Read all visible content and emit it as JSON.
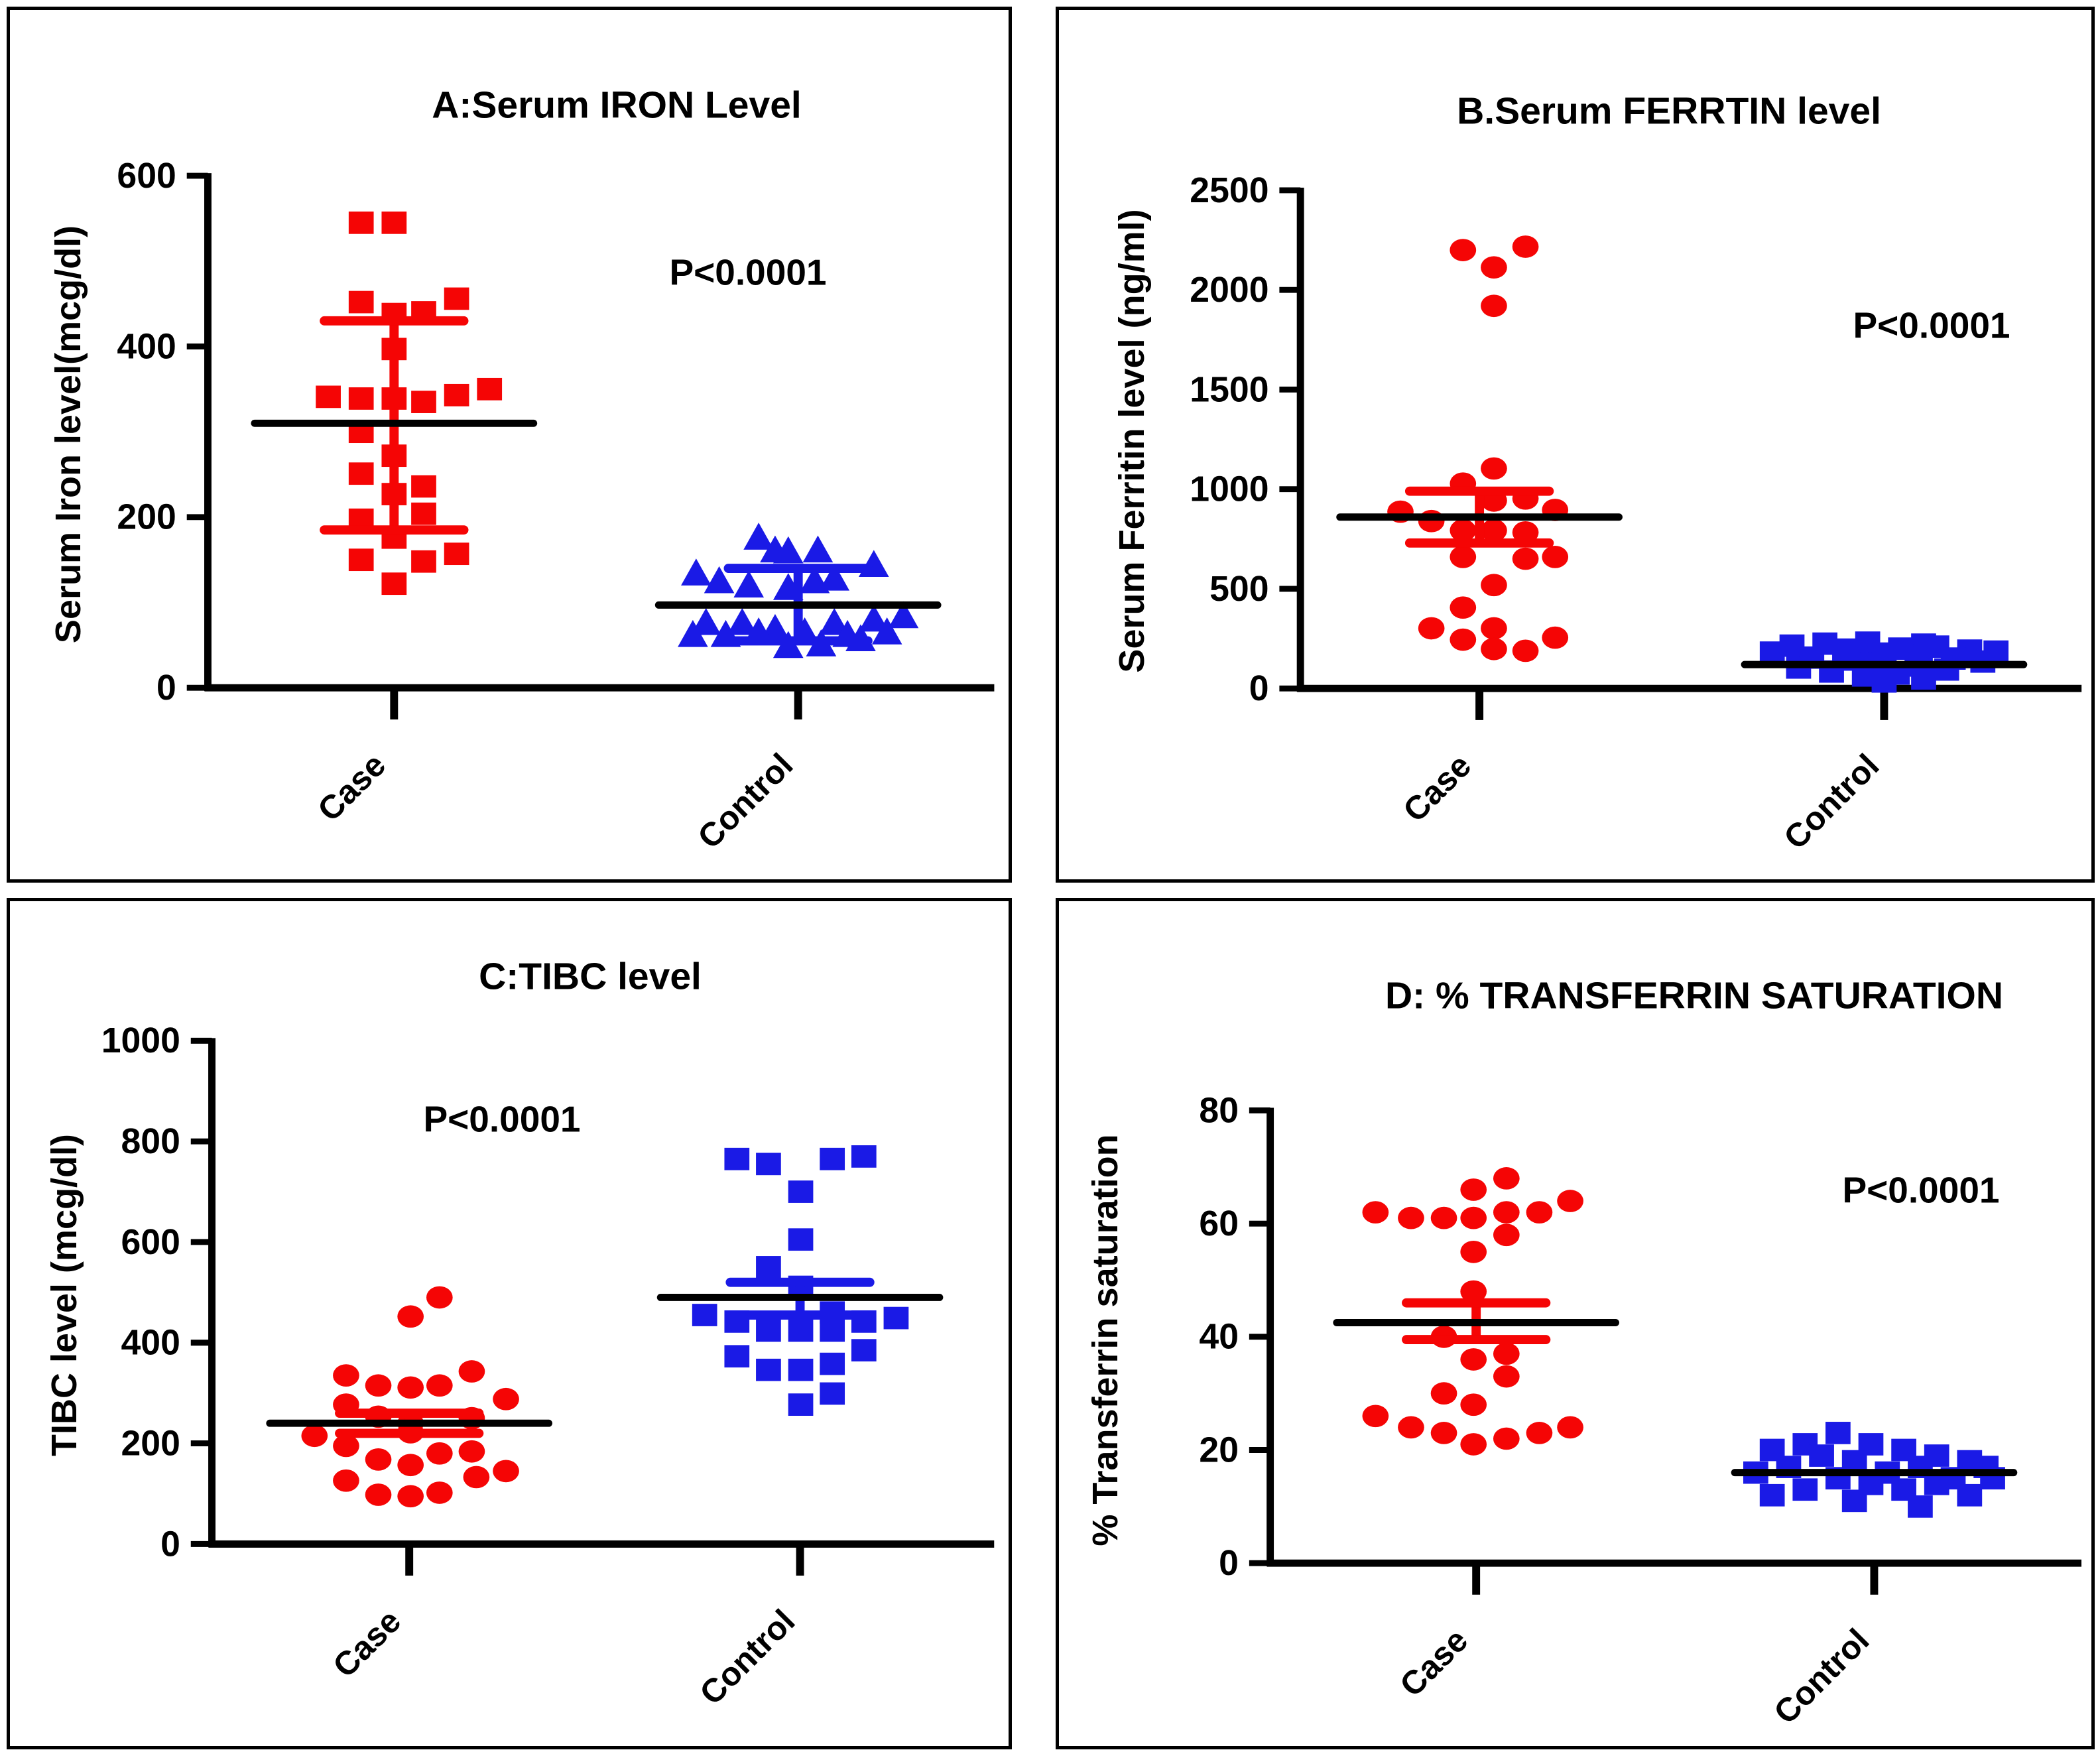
{
  "figure": {
    "p_label": "P<0.0001",
    "categories": [
      "Case",
      "Control"
    ],
    "case_color": "#f50505",
    "control_color": "#1a1ae6",
    "axis_color": "#000000"
  },
  "chart_data": [
    {
      "id": "A",
      "type": "scatter",
      "title": "A:Serum IRON Level",
      "p_annotation": "P<0.0001",
      "ylabel": "Serum Iron level(mcg/dl)",
      "xlabel": "",
      "categories": [
        "Case",
        "Control"
      ],
      "ylim": [
        0,
        600
      ],
      "yticks": [
        0,
        200,
        400,
        600
      ],
      "grid": false,
      "groups": [
        {
          "name": "Case",
          "color": "#f50505",
          "marker": "square",
          "mean": 310,
          "err_low": 185,
          "err_high": 430,
          "values": [
            545,
            545,
            452,
            438,
            440,
            456,
            397,
            341,
            339,
            339,
            335,
            343,
            350,
            300,
            272,
            251,
            236,
            227,
            204,
            197,
            176,
            150,
            148,
            157,
            122
          ],
          "jitter": [
            -50,
            0,
            -50,
            0,
            45,
            95,
            0,
            -100,
            -50,
            0,
            45,
            95,
            145,
            -50,
            0,
            -50,
            45,
            0,
            45,
            -50,
            0,
            -50,
            45,
            95,
            0
          ]
        },
        {
          "name": "Control",
          "color": "#1a1ae6",
          "marker": "triangle",
          "mean": 97,
          "err_low": 55,
          "err_high": 140,
          "values": [
            175,
            160,
            159,
            160,
            143,
            133,
            124,
            119,
            116,
            124,
            127,
            75,
            79,
            83,
            75,
            75,
            68,
            64,
            64,
            64,
            61,
            61,
            61,
            56,
            50,
            48
          ],
          "jitter": [
            -60,
            -35,
            -15,
            30,
            115,
            -155,
            -120,
            -75,
            -15,
            25,
            55,
            -140,
            115,
            160,
            -85,
            55,
            -35,
            -60,
            10,
            135,
            -160,
            -110,
            75,
            95,
            35,
            -15
          ]
        }
      ]
    },
    {
      "id": "B",
      "type": "scatter",
      "title": "B.Serum FERRTIN level",
      "p_annotation": "P<0.0001",
      "ylabel": "Serum Ferritin level (ng/ml)",
      "xlabel": "",
      "categories": [
        "Case",
        "Control"
      ],
      "ylim": [
        0,
        2500
      ],
      "yticks": [
        0,
        500,
        1000,
        1500,
        2000,
        2500
      ],
      "grid": false,
      "groups": [
        {
          "name": "Case",
          "color": "#f50505",
          "marker": "circle",
          "mean": 860,
          "err_low": 730,
          "err_high": 990,
          "values": [
            2217,
            2200,
            2113,
            1920,
            1104,
            1028,
            943,
            953,
            896,
            887,
            840,
            793,
            793,
            783,
            660,
            651,
            660,
            519,
            406,
            302,
            302,
            245,
            255,
            198,
            189
          ],
          "jitter": [
            70,
            -25,
            22,
            22,
            22,
            -25,
            22,
            70,
            115,
            -120,
            -73,
            -25,
            22,
            70,
            -25,
            70,
            115,
            22,
            -25,
            -73,
            22,
            -25,
            115,
            22,
            70
          ]
        },
        {
          "name": "Control",
          "color": "#1a1ae6",
          "marker": "square",
          "mean": 120,
          "err_low": null,
          "err_high": null,
          "values": [
            230,
            225,
            220,
            215,
            210,
            200,
            195,
            190,
            185,
            180,
            175,
            165,
            155,
            150,
            145,
            140,
            135,
            125,
            115,
            105,
            95,
            85,
            75,
            65,
            50,
            35
          ],
          "jitter": [
            -25,
            -90,
            60,
            -140,
            80,
            25,
            -55,
            130,
            170,
            -170,
            -5,
            55,
            -110,
            105,
            -60,
            0,
            150,
            -25,
            50,
            -130,
            95,
            -80,
            20,
            -30,
            60,
            0
          ]
        }
      ]
    },
    {
      "id": "C",
      "type": "scatter",
      "title": "C:TIBC level",
      "p_annotation": "P<0.0001",
      "ylabel": "TIBC level (mcg/dl)",
      "xlabel": "",
      "categories": [
        "Case",
        "Control"
      ],
      "ylim": [
        0,
        1000
      ],
      "yticks": [
        0,
        200,
        400,
        600,
        800,
        1000
      ],
      "grid": false,
      "groups": [
        {
          "name": "Case",
          "color": "#f50505",
          "marker": "circle",
          "mean": 240,
          "err_low": 220,
          "err_high": 260,
          "values": [
            490,
            452,
            343,
            335,
            315,
            311,
            315,
            288,
            277,
            253,
            250,
            240,
            222,
            215,
            195,
            184,
            180,
            168,
            157,
            145,
            133,
            126,
            102,
            98,
            95
          ],
          "jitter": [
            46,
            2,
            95,
            -96,
            -47,
            2,
            46,
            147,
            -96,
            -47,
            95,
            2,
            2,
            -144,
            -96,
            95,
            46,
            -47,
            2,
            147,
            102,
            -96,
            46,
            -47,
            2
          ]
        },
        {
          "name": "Control",
          "color": "#1a1ae6",
          "marker": "square",
          "mean": 490,
          "err_low": 455,
          "err_high": 520,
          "values": [
            770,
            765,
            765,
            755,
            700,
            605,
            550,
            511,
            460,
            455,
            449,
            442,
            442,
            424,
            424,
            424,
            385,
            373,
            358,
            346,
            346,
            299,
            277
          ],
          "jitter": [
            97,
            -96,
            49,
            -48,
            1,
            1,
            -48,
            1,
            49,
            -145,
            146,
            -96,
            97,
            -48,
            1,
            49,
            97,
            -96,
            49,
            -48,
            1,
            49,
            1
          ]
        }
      ]
    },
    {
      "id": "D",
      "type": "scatter",
      "title": "D: % TRANSFERRIN SATURATION",
      "p_annotation": "P<0.0001",
      "ylabel": "% Transferrin saturation",
      "xlabel": "",
      "categories": [
        "Case",
        "Control"
      ],
      "ylim": [
        0,
        80
      ],
      "yticks": [
        0,
        20,
        40,
        60,
        80
      ],
      "grid": false,
      "groups": [
        {
          "name": "Case",
          "color": "#f50505",
          "marker": "circle",
          "mean": 42.5,
          "err_low": 39.5,
          "err_high": 46,
          "values": [
            68,
            66,
            64,
            62,
            61,
            61,
            61,
            62,
            62,
            58,
            55,
            48,
            40,
            37,
            36,
            33,
            30,
            28,
            26,
            24,
            23,
            21,
            22,
            23,
            24
          ],
          "jitter": [
            46,
            -4,
            143,
            -153,
            -99,
            -49,
            -4,
            46,
            96,
            46,
            -4,
            -4,
            -49,
            46,
            -4,
            46,
            -49,
            -4,
            -153,
            -99,
            -49,
            -4,
            46,
            96,
            143
          ]
        },
        {
          "name": "Control",
          "color": "#1a1ae6",
          "marker": "square",
          "mean": 16,
          "err_low": null,
          "err_high": null,
          "values": [
            23,
            21,
            21,
            20,
            20,
            19,
            19,
            18,
            18,
            17,
            17,
            17,
            16,
            16,
            15,
            15,
            15,
            14,
            14,
            13,
            13,
            12,
            12,
            11,
            10
          ],
          "jitter": [
            -55,
            -105,
            -5,
            45,
            -155,
            95,
            -80,
            145,
            -30,
            70,
            -130,
            170,
            20,
            -180,
            120,
            -55,
            180,
            -5,
            95,
            -105,
            45,
            -155,
            145,
            -30,
            70
          ]
        }
      ]
    }
  ]
}
